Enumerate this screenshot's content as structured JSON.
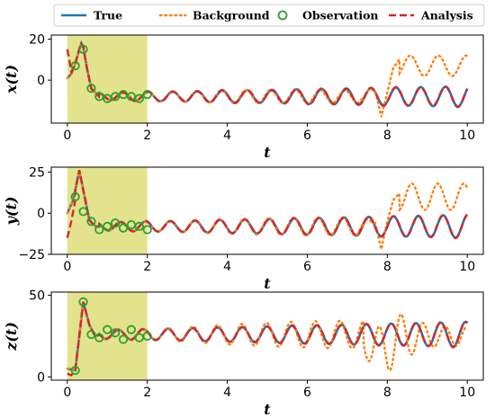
{
  "legend": {
    "entries": [
      {
        "label": "True",
        "style": "solid",
        "color": "#1f77b4"
      },
      {
        "label": "Background",
        "style": "dotted",
        "color": "#ff7f0e"
      },
      {
        "label": "Observation",
        "style": "marker",
        "color": "#2ca02c"
      },
      {
        "label": "Analysis",
        "style": "dashed",
        "color": "#d62728"
      }
    ],
    "placement": "top"
  },
  "chart_data": [
    {
      "type": "line",
      "ylabel": "x(t)",
      "xlabel": "t",
      "xlim": [
        -0.4,
        10.4
      ],
      "ylim": [
        -21,
        22
      ],
      "xticks": [
        0,
        2,
        4,
        6,
        8,
        10
      ],
      "yticks": [
        0,
        20
      ],
      "shaded_window": [
        0,
        2
      ],
      "series": [
        {
          "name": "True",
          "x": [
            0,
            0.1,
            0.2,
            0.3,
            0.35,
            0.4,
            0.5,
            0.6,
            0.8,
            1.0,
            1.5,
            2,
            2.5,
            3,
            3.5,
            4,
            4.5,
            5,
            5.5,
            6,
            6.5,
            7,
            7.5,
            8,
            8.5,
            9,
            9.5,
            10
          ],
          "y": [
            1,
            3,
            8,
            15,
            18,
            16,
            5,
            -4,
            -8,
            -9,
            -8.5,
            -8,
            -8,
            -8,
            -8,
            -8,
            -8,
            -8,
            -8,
            -8,
            -8,
            -8,
            -8,
            -8,
            -8,
            -8,
            -8,
            -6
          ]
        },
        {
          "name": "Background",
          "x": [
            0,
            0.2,
            0.35,
            0.5,
            1,
            2,
            3,
            4,
            5,
            6,
            7,
            7.6,
            7.9,
            8.2,
            8.5,
            8.8,
            9.1,
            9.5,
            9.8,
            10
          ],
          "y": [
            1,
            8,
            19,
            5,
            -8,
            -8,
            -8,
            -9,
            -9,
            -9,
            -8,
            -6,
            -18,
            -2,
            8,
            12,
            6,
            10,
            13,
            8
          ]
        },
        {
          "name": "Observation",
          "x": [
            0.2,
            0.4,
            0.6,
            0.8,
            1.0,
            1.2,
            1.4,
            1.6,
            1.8,
            2.0
          ],
          "y": [
            7,
            15,
            -4,
            -8,
            -9,
            -8,
            -7,
            -8,
            -9,
            -7
          ]
        },
        {
          "name": "Analysis",
          "x": [
            0,
            0.1,
            0.2,
            0.35,
            0.5,
            0.7,
            1,
            2,
            10
          ],
          "y": [
            15,
            4,
            8,
            19,
            5,
            -6,
            -9,
            -8,
            -5
          ]
        }
      ]
    },
    {
      "type": "line",
      "ylabel": "y(t)",
      "xlabel": "t",
      "xlim": [
        -0.4,
        10.4
      ],
      "ylim": [
        -25,
        28
      ],
      "xticks": [
        0,
        2,
        4,
        6,
        8,
        10
      ],
      "yticks": [
        -25,
        0,
        25
      ],
      "shaded_window": [
        0,
        2
      ],
      "series": [
        {
          "name": "True",
          "x": [
            0,
            0.3,
            0.5,
            1,
            2,
            10
          ],
          "y": [
            0,
            26,
            -5,
            -8,
            -8,
            -4
          ]
        },
        {
          "name": "Background",
          "x": [
            0,
            0.3,
            0.5,
            1,
            2,
            7.5,
            8,
            8.3,
            9,
            9.8,
            10
          ],
          "y": [
            0,
            26,
            -5,
            -8,
            -8,
            -7,
            -22,
            0,
            18,
            14,
            -4
          ]
        },
        {
          "name": "Observation",
          "x": [
            0.2,
            0.4,
            0.6,
            0.8,
            1.0,
            1.2,
            1.4,
            1.6,
            1.8,
            2.0
          ],
          "y": [
            10,
            1,
            -5,
            -10,
            -8,
            -6,
            -9,
            -7,
            -8,
            -10
          ]
        },
        {
          "name": "Analysis",
          "x": [
            0,
            0.3,
            0.5,
            1,
            2,
            10
          ],
          "y": [
            -15,
            26,
            -5,
            -8,
            -8,
            -4
          ]
        }
      ]
    },
    {
      "type": "line",
      "ylabel": "z(t)",
      "xlabel": "t",
      "xlim": [
        -0.4,
        10.4
      ],
      "ylim": [
        -2,
        52
      ],
      "xticks": [
        0,
        2,
        4,
        6,
        8,
        10
      ],
      "yticks": [
        0,
        50
      ],
      "shaded_window": [
        0,
        2
      ],
      "series": [
        {
          "name": "True",
          "x": [
            0,
            0.2,
            0.4,
            0.7,
            1,
            2,
            10
          ],
          "y": [
            5,
            4,
            46,
            26,
            28,
            26,
            25
          ]
        },
        {
          "name": "Background",
          "x": [
            0,
            0.2,
            0.4,
            0.7,
            1,
            2,
            7.5,
            8,
            8.5,
            9,
            10
          ],
          "y": [
            5,
            4,
            46,
            26,
            28,
            26,
            25,
            40,
            15,
            36,
            30
          ]
        },
        {
          "name": "Observation",
          "x": [
            0.2,
            0.4,
            0.6,
            0.8,
            1.0,
            1.2,
            1.4,
            1.6,
            1.8,
            2.0
          ],
          "y": [
            4,
            46,
            26,
            24,
            29,
            27,
            23,
            29,
            24,
            25
          ]
        },
        {
          "name": "Analysis",
          "x": [
            0,
            0.2,
            0.4,
            0.7,
            1,
            2,
            10
          ],
          "y": [
            2,
            4,
            46,
            26,
            28,
            26,
            25
          ]
        }
      ]
    }
  ]
}
